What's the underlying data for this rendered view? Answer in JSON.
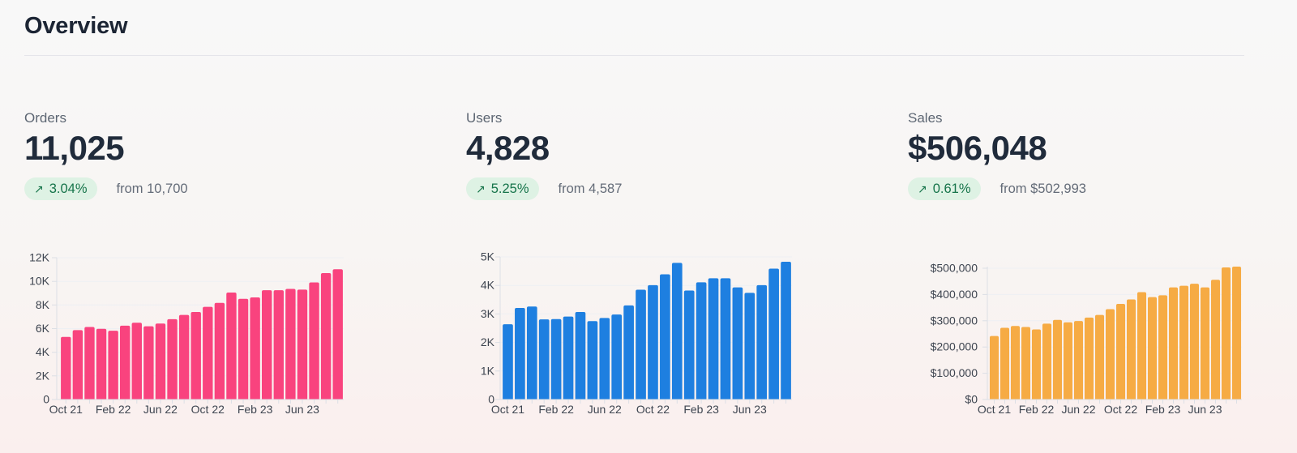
{
  "page": {
    "title": "Overview"
  },
  "colors": {
    "title": "#1C2534",
    "value": "#202B3B",
    "label": "#5D6673",
    "muted": "#646C78",
    "badge_bg": "#DEF2E4",
    "badge_text": "#16744A",
    "orders_accent": "#F9437E",
    "users_accent": "#1E7FE0",
    "sales_accent": "#F6AB44",
    "grid": "#EEF0F3",
    "axis": "#DCDFE5",
    "tick_text": "#3E4550",
    "divider": "#E5E5EA"
  },
  "cards": [
    {
      "label": "Orders",
      "value": "11,025",
      "arrow": "↗",
      "change": "3.04%",
      "from": "from 10,700"
    },
    {
      "label": "Users",
      "value": "4,828",
      "arrow": "↗",
      "change": "5.25%",
      "from": "from 4,587"
    },
    {
      "label": "Sales",
      "value": "$506,048",
      "arrow": "↗",
      "change": "0.61%",
      "from": "from $502,993"
    }
  ],
  "chart_data": [
    {
      "type": "bar",
      "series_name": "Orders",
      "color": "#F9437E",
      "x": [
        "Oct 21",
        "Nov 21",
        "Dec 21",
        "Jan 22",
        "Feb 22",
        "Mar 22",
        "Apr 22",
        "May 22",
        "Jun 22",
        "Jul 22",
        "Aug 22",
        "Sep 22",
        "Oct 22",
        "Nov 22",
        "Dec 22",
        "Jan 23",
        "Feb 23",
        "Mar 23",
        "Apr 23",
        "May 23",
        "Jun 23",
        "Jul 23",
        "Aug 23",
        "Sep 23"
      ],
      "values": [
        5300,
        5870,
        6140,
        5980,
        5820,
        6250,
        6500,
        6200,
        6430,
        6800,
        7160,
        7410,
        7840,
        8180,
        9050,
        8520,
        8640,
        9250,
        9250,
        9360,
        9300,
        9910,
        10700,
        11025
      ],
      "ylim": [
        0,
        12000
      ],
      "grid": true,
      "legend": false,
      "yticks": [
        {
          "v": 0,
          "label": "0"
        },
        {
          "v": 2000,
          "label": "2K"
        },
        {
          "v": 4000,
          "label": "4K"
        },
        {
          "v": 6000,
          "label": "6K"
        },
        {
          "v": 8000,
          "label": "8K"
        },
        {
          "v": 10000,
          "label": "10K"
        },
        {
          "v": 12000,
          "label": "12K"
        }
      ],
      "xticks": [
        {
          "i": 0,
          "label": "Oct 21"
        },
        {
          "i": 4,
          "label": "Feb 22"
        },
        {
          "i": 8,
          "label": "Jun 22"
        },
        {
          "i": 12,
          "label": "Oct 22"
        },
        {
          "i": 16,
          "label": "Feb 23"
        },
        {
          "i": 20,
          "label": "Jun 23"
        }
      ]
    },
    {
      "type": "bar",
      "series_name": "Users",
      "color": "#1E7FE0",
      "x": [
        "Oct 21",
        "Nov 21",
        "Dec 21",
        "Jan 22",
        "Feb 22",
        "Mar 22",
        "Apr 22",
        "May 22",
        "Jun 22",
        "Jul 22",
        "Aug 22",
        "Sep 22",
        "Oct 22",
        "Nov 22",
        "Dec 22",
        "Jan 23",
        "Feb 23",
        "Mar 23",
        "Apr 23",
        "May 23",
        "Jun 23",
        "Jul 23",
        "Aug 23",
        "Sep 23"
      ],
      "values": [
        2640,
        3210,
        3260,
        2810,
        2820,
        2910,
        3070,
        2750,
        2860,
        2980,
        3300,
        3850,
        4010,
        4390,
        4790,
        3820,
        4110,
        4250,
        4250,
        3930,
        3740,
        4010,
        4587,
        4828
      ],
      "ylim": [
        0,
        5000
      ],
      "grid": true,
      "legend": false,
      "yticks": [
        {
          "v": 0,
          "label": "0"
        },
        {
          "v": 1000,
          "label": "1K"
        },
        {
          "v": 2000,
          "label": "2K"
        },
        {
          "v": 3000,
          "label": "3K"
        },
        {
          "v": 4000,
          "label": "4K"
        },
        {
          "v": 5000,
          "label": "5K"
        }
      ],
      "xticks": [
        {
          "i": 0,
          "label": "Oct 21"
        },
        {
          "i": 4,
          "label": "Feb 22"
        },
        {
          "i": 8,
          "label": "Jun 22"
        },
        {
          "i": 12,
          "label": "Oct 22"
        },
        {
          "i": 16,
          "label": "Feb 23"
        },
        {
          "i": 20,
          "label": "Jun 23"
        }
      ]
    },
    {
      "type": "bar",
      "series_name": "Sales",
      "color": "#F6AB44",
      "x": [
        "Oct 21",
        "Nov 21",
        "Dec 21",
        "Jan 22",
        "Feb 22",
        "Mar 22",
        "Apr 22",
        "May 22",
        "Jun 22",
        "Jul 22",
        "Aug 22",
        "Sep 22",
        "Oct 22",
        "Nov 22",
        "Dec 22",
        "Jan 23",
        "Feb 23",
        "Mar 23",
        "Apr 23",
        "May 23",
        "Jun 23",
        "Jul 23",
        "Aug 23",
        "Sep 23"
      ],
      "values": [
        242000,
        273000,
        280000,
        276000,
        267000,
        289000,
        303000,
        294000,
        299000,
        312000,
        322000,
        344000,
        364000,
        381000,
        409000,
        390000,
        397000,
        427000,
        433000,
        441000,
        427000,
        456000,
        502993,
        506048
      ],
      "ylim": [
        0,
        506048
      ],
      "grid": true,
      "legend": false,
      "yticks": [
        {
          "v": 0,
          "label": "$0"
        },
        {
          "v": 100000,
          "label": "$100,000"
        },
        {
          "v": 200000,
          "label": "$200,000"
        },
        {
          "v": 300000,
          "label": "$300,000"
        },
        {
          "v": 400000,
          "label": "$400,000"
        },
        {
          "v": 500000,
          "label": "$500,000"
        }
      ],
      "xticks": [
        {
          "i": 0,
          "label": "Oct 21"
        },
        {
          "i": 4,
          "label": "Feb 22"
        },
        {
          "i": 8,
          "label": "Jun 22"
        },
        {
          "i": 12,
          "label": "Oct 22"
        },
        {
          "i": 16,
          "label": "Feb 23"
        },
        {
          "i": 20,
          "label": "Jun 23"
        }
      ]
    }
  ]
}
